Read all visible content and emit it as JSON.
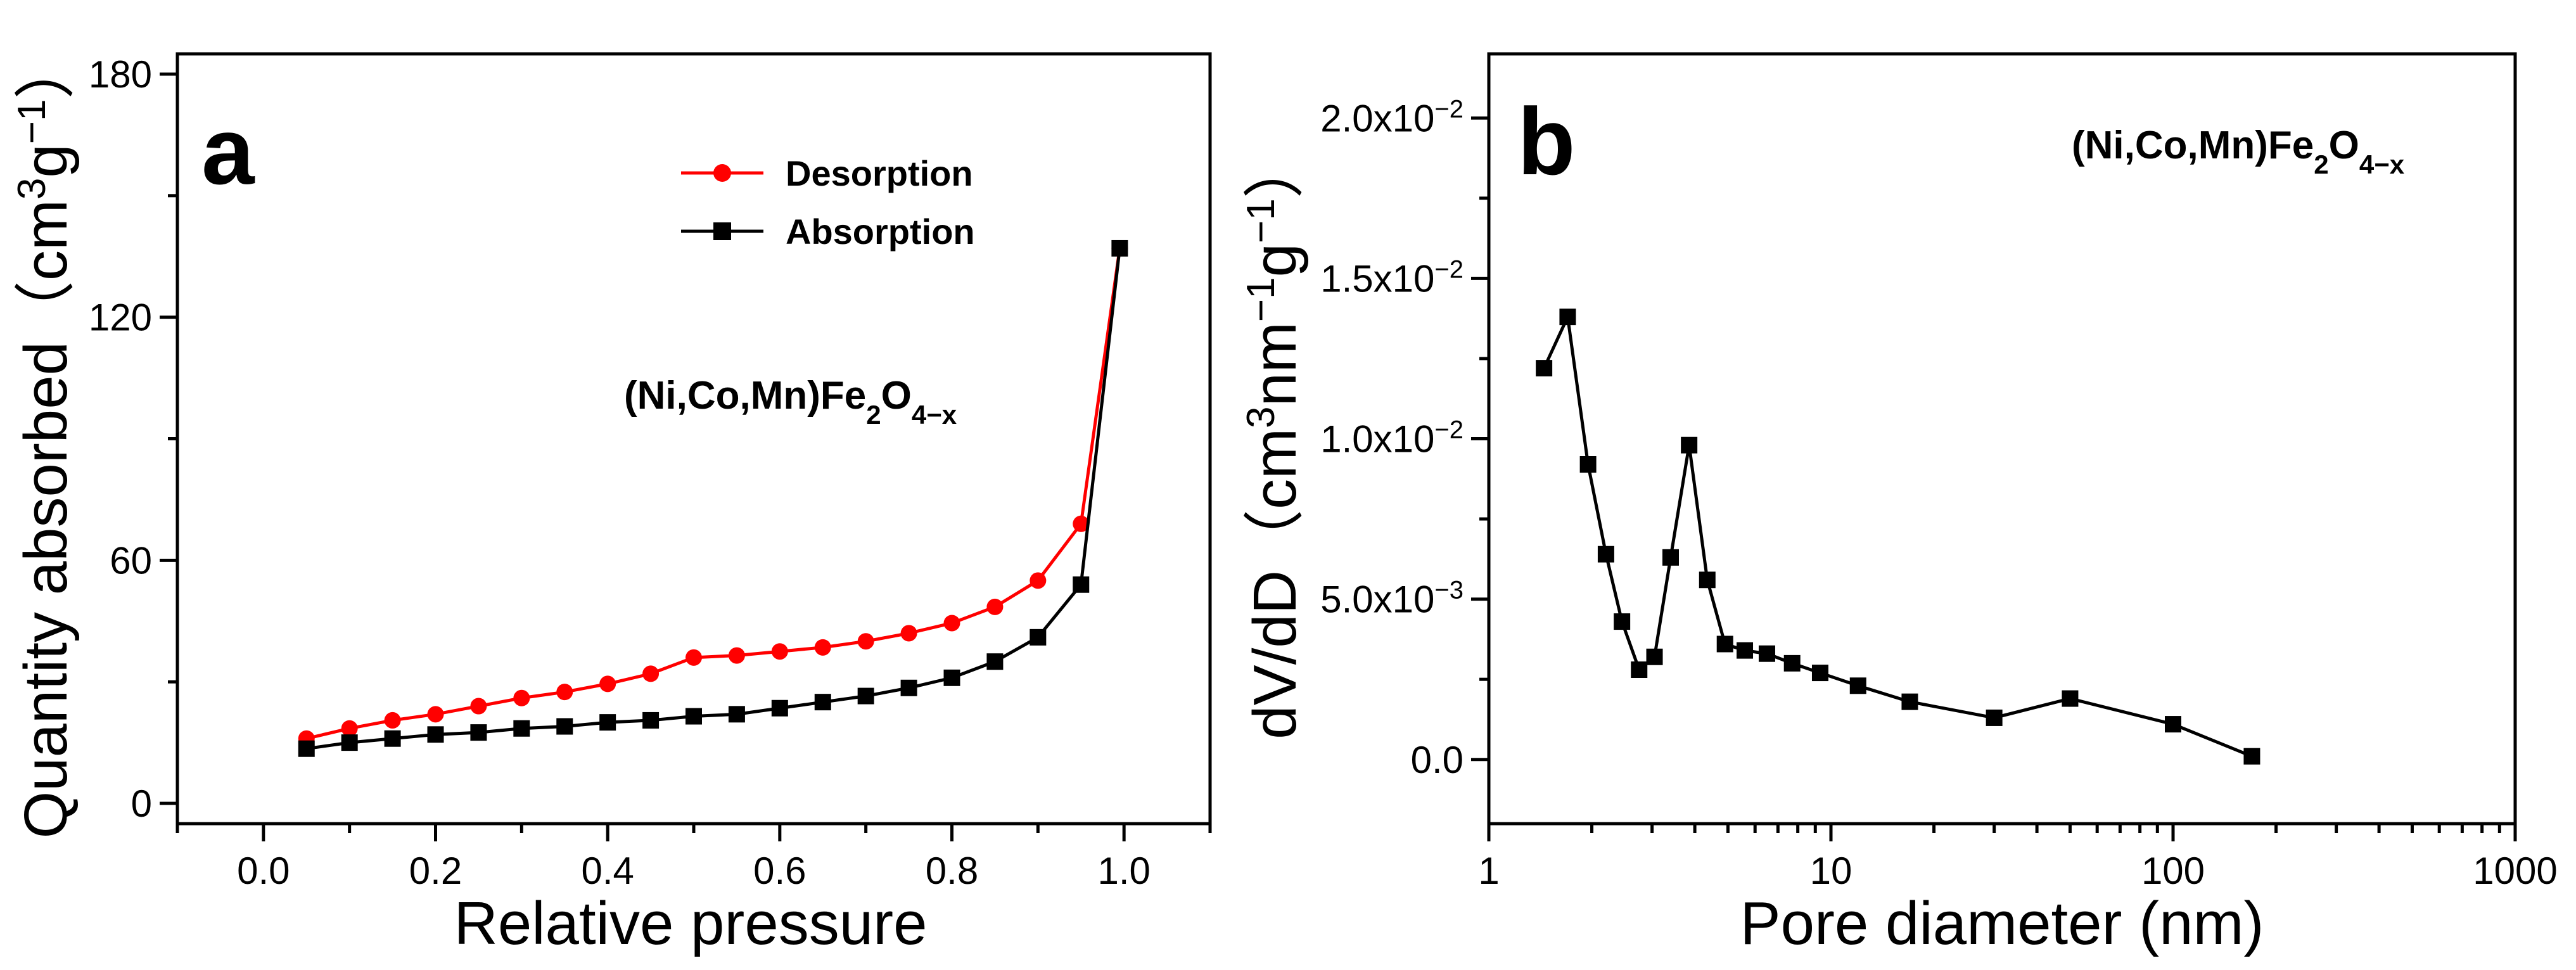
{
  "chart_data": [
    {
      "type": "line",
      "panel_label": "a",
      "annotation": {
        "main": "(Ni,Co,Mn)Fe",
        "sub1": "2",
        "mid": "O",
        "sub2": "4−x"
      },
      "xlabel": "Relative pressure",
      "ylabel": {
        "main": "Quantity absorbed（cm",
        "sup1": "3",
        "mid": "g",
        "sup2": "−1",
        "end": "）"
      },
      "xlim": [
        -0.1,
        1.1
      ],
      "ylim": [
        -5,
        185
      ],
      "xticks": [
        0.0,
        0.2,
        0.4,
        0.6,
        0.8,
        1.0
      ],
      "xtick_labels": [
        "0.0",
        "0.2",
        "0.4",
        "0.6",
        "0.8",
        "1.0"
      ],
      "yticks": [
        0,
        60,
        120,
        180
      ],
      "ytick_labels": [
        "0",
        "60",
        "120",
        "180"
      ],
      "legend_placement": "top-center",
      "series": [
        {
          "name": "Desorption",
          "color": "#ff0000",
          "marker": "circle",
          "x": [
            0.05,
            0.1,
            0.15,
            0.2,
            0.25,
            0.3,
            0.35,
            0.4,
            0.45,
            0.5,
            0.55,
            0.6,
            0.65,
            0.7,
            0.75,
            0.8,
            0.85,
            0.9,
            0.95,
            0.995
          ],
          "y": [
            16,
            18.5,
            20.5,
            22,
            24,
            26,
            27.5,
            29.5,
            32,
            36,
            36.5,
            37.5,
            38.5,
            40,
            42,
            44.5,
            48.5,
            55,
            69,
            137
          ]
        },
        {
          "name": "Absorption",
          "color": "#000000",
          "marker": "square",
          "x": [
            0.05,
            0.1,
            0.15,
            0.2,
            0.25,
            0.3,
            0.35,
            0.4,
            0.45,
            0.5,
            0.55,
            0.6,
            0.65,
            0.7,
            0.75,
            0.8,
            0.85,
            0.9,
            0.95,
            0.995
          ],
          "y": [
            13.5,
            15,
            16,
            17,
            17.5,
            18.5,
            19,
            20,
            20.5,
            21.5,
            22,
            23.5,
            25,
            26.5,
            28.5,
            31,
            35,
            41,
            54,
            137
          ]
        }
      ]
    },
    {
      "type": "line",
      "panel_label": "b",
      "annotation": {
        "main": "(Ni,Co,Mn)Fe",
        "sub1": "2",
        "mid": "O",
        "sub2": "4−x"
      },
      "xlabel": "Pore diameter (nm)",
      "ylabel": {
        "main": "dV/dD（cm",
        "sup1": "3",
        "mid": "nm",
        "sup2": "−1",
        "mid2": "g",
        "sup3": "−1",
        "end": "）"
      },
      "xscale": "log",
      "xlim": [
        1,
        1000
      ],
      "ylim": [
        -0.002,
        0.022
      ],
      "xticks": [
        1,
        10,
        100,
        1000
      ],
      "xtick_labels": [
        "1",
        "10",
        "100",
        "1000"
      ],
      "yticks": [
        0,
        0.005,
        0.01,
        0.015,
        0.02
      ],
      "ytick_labels": [
        {
          "main": "0.0"
        },
        {
          "main": "5.0x10",
          "exp": "−3"
        },
        {
          "main": "1.0x10",
          "exp": "−2"
        },
        {
          "main": "1.5x10",
          "exp": "−2"
        },
        {
          "main": "2.0x10",
          "exp": "−2"
        }
      ],
      "series": [
        {
          "color": "#000000",
          "marker": "square",
          "x": [
            1.45,
            1.7,
            1.95,
            2.2,
            2.45,
            2.75,
            3.05,
            3.4,
            3.85,
            4.35,
            4.9,
            5.6,
            6.5,
            7.7,
            9.3,
            12,
            17,
            30,
            50,
            100,
            170
          ],
          "y": [
            0.0122,
            0.0138,
            0.0092,
            0.0064,
            0.0043,
            0.0028,
            0.0032,
            0.0063,
            0.0098,
            0.0056,
            0.0036,
            0.0034,
            0.0033,
            0.003,
            0.0027,
            0.0023,
            0.0018,
            0.0013,
            0.0019,
            0.0011,
            0.0001
          ]
        }
      ]
    }
  ]
}
